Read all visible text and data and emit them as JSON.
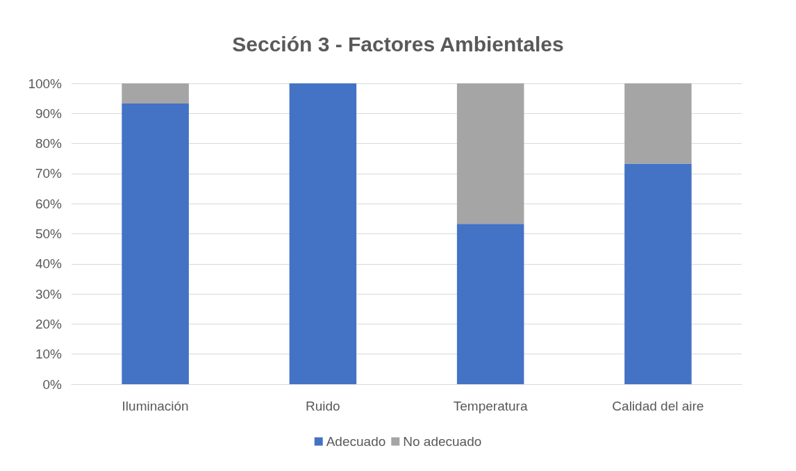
{
  "chart_data": {
    "type": "bar",
    "title": "Sección 3 - Factores Ambientales",
    "stacked": true,
    "categories": [
      "Iluminación",
      "Ruido",
      "Temperatura",
      "Calidad del aire"
    ],
    "series": [
      {
        "name": "Adecuado",
        "color": "#4472c4",
        "values": [
          93.3,
          100,
          53.3,
          73.3
        ]
      },
      {
        "name": "No adecuado",
        "color": "#a5a5a5",
        "values": [
          6.7,
          0,
          46.7,
          26.7
        ]
      }
    ],
    "ylim": [
      0,
      100
    ],
    "yticks": [
      {
        "value": 0,
        "label": "0%"
      },
      {
        "value": 10,
        "label": "10%"
      },
      {
        "value": 20,
        "label": "20%"
      },
      {
        "value": 30,
        "label": "30%"
      },
      {
        "value": 40,
        "label": "40%"
      },
      {
        "value": 50,
        "label": "50%"
      },
      {
        "value": 60,
        "label": "60%"
      },
      {
        "value": 70,
        "label": "70%"
      },
      {
        "value": 80,
        "label": "80%"
      },
      {
        "value": 90,
        "label": "90%"
      },
      {
        "value": 100,
        "label": "100%"
      }
    ],
    "grid": "y",
    "legend": "bottom"
  }
}
